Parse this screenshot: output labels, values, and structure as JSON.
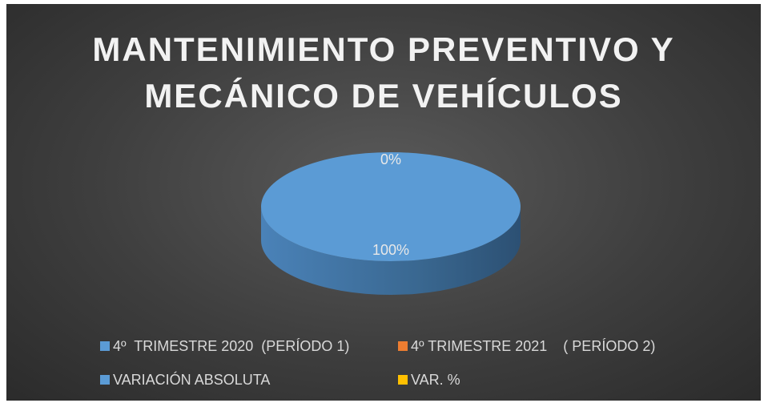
{
  "chart_data": {
    "type": "pie",
    "title": "MANTENIMIENTO PREVENTIVO Y\nMECÁNICO DE VEHÍCULOS",
    "categories": [
      "4º  TRIMESTRE 2020  (PERÍODO 1)",
      "4º TRIMESTRE 2021    ( PERÍODO 2)",
      "VARIACIÓN ABSOLUTA",
      "VAR. %"
    ],
    "values": [
      100,
      0,
      0,
      0
    ],
    "value_labels": [
      "100%",
      "0%",
      null,
      null
    ],
    "colors": [
      "#5b9bd5",
      "#ed7d31",
      "#5b9bd5",
      "#ffc000"
    ],
    "legend": "bottom"
  }
}
